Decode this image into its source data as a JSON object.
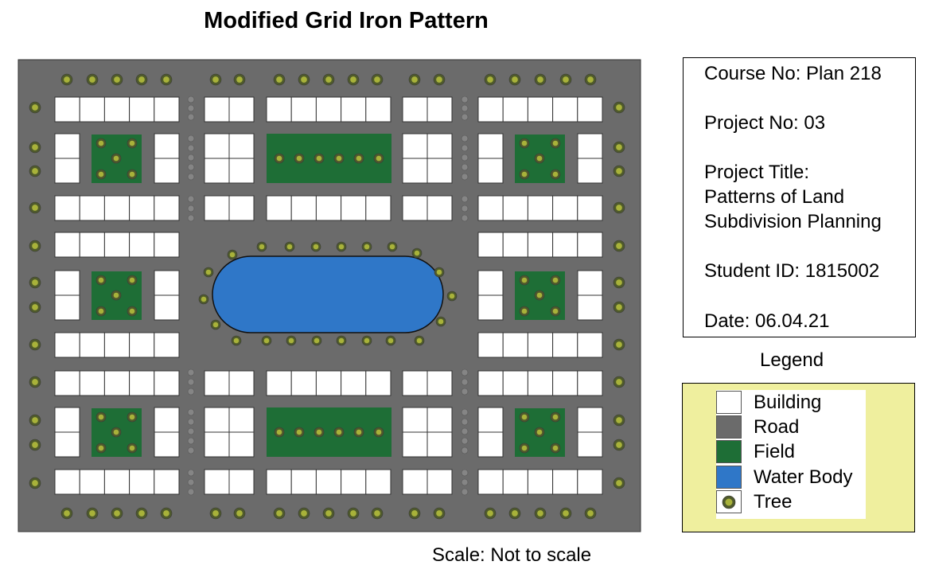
{
  "title": "Modified Grid Iron Pattern",
  "info": {
    "course": "Course No: Plan 218",
    "project": "Project No: 03",
    "project_title_label": "Project Title:",
    "project_title_line1": "Patterns of Land",
    "project_title_line2": "Subdivision Planning",
    "student": "Student ID: 1815002",
    "date": "Date: 06.04.21"
  },
  "legend": {
    "title": "Legend",
    "items": [
      {
        "label": "Building",
        "color": "#ffffff"
      },
      {
        "label": "Road",
        "color": "#6b6b6b"
      },
      {
        "label": "Field",
        "color": "#1e6e36"
      },
      {
        "label": "Water Body",
        "color": "#2f77c8"
      },
      {
        "label": "Tree",
        "color": "#7a8c2a"
      }
    ]
  },
  "scale": "Scale: Not to scale",
  "colors": {
    "road": "#6b6b6b",
    "building": "#ffffff",
    "field": "#1e6e36",
    "water": "#2f77c8",
    "tree_outer": "#4f5a2c",
    "tree_inner": "#a8b23a"
  }
}
